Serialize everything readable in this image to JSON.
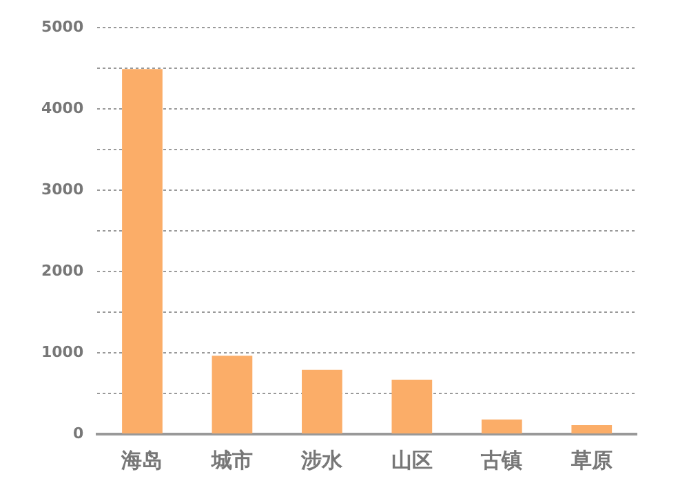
{
  "chart_data": {
    "type": "bar",
    "categories": [
      "海岛",
      "城市",
      "涉水",
      "山区",
      "古镇",
      "草原"
    ],
    "values": [
      4490,
      965,
      790,
      670,
      180,
      110
    ],
    "color": "#fbad68",
    "ylim": [
      0,
      5000
    ],
    "yticks": [
      0,
      {
        "value": 500,
        "label": null
      },
      1000,
      {
        "value": 1500,
        "label": null
      },
      2000,
      {
        "value": 2500,
        "label": null
      },
      3000,
      {
        "value": 3500,
        "label": null
      },
      4000,
      {
        "value": 4500,
        "label": null
      },
      5000
    ],
    "grid": "y"
  }
}
